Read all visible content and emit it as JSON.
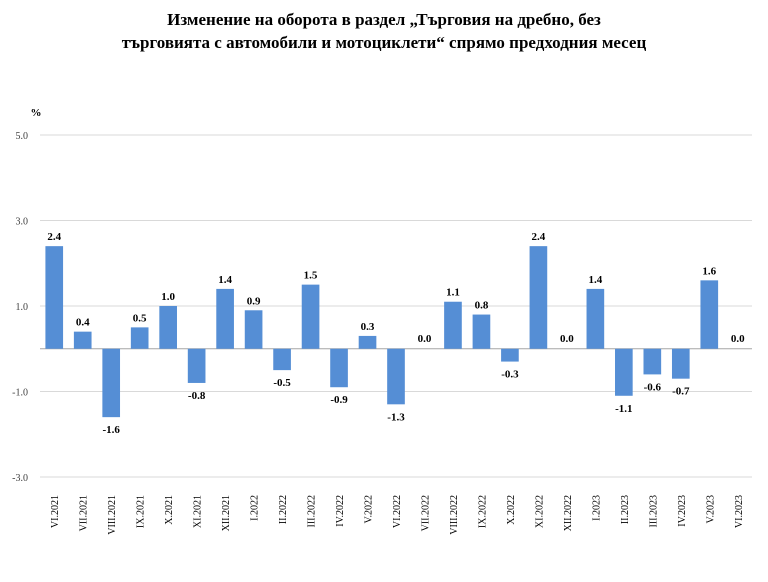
{
  "chart_data": {
    "type": "bar",
    "title_lines": [
      "Изменение на оборота в раздел „Търговия на дребно, без",
      "търговията с автомобили и мотоциклети“ спрямо предходния месец"
    ],
    "ylabel": "%",
    "ylim": [
      -3.0,
      5.0
    ],
    "yticks": [
      5.0,
      3.0,
      1.0,
      -1.0,
      -3.0
    ],
    "ytick_labels": [
      "5.0",
      "3.0",
      "1.0",
      "-1.0",
      "-3.0"
    ],
    "grid": true,
    "legend": "none",
    "bar_color": "#558ED5",
    "categories": [
      "VI.2021",
      "VII.2021",
      "VIII.2021",
      "IX.2021",
      "X.2021",
      "XI.2021",
      "XII.2021",
      "I.2022",
      "II.2022",
      "III.2022",
      "IV.2022",
      "V.2022",
      "VI.2022",
      "VII.2022",
      "VIII.2022",
      "IX.2022",
      "X.2022",
      "XI.2022",
      "XII.2022",
      "I.2023",
      "II.2023",
      "III.2023",
      "IV.2023",
      "V.2023",
      "VI.2023"
    ],
    "values": [
      2.4,
      0.4,
      -1.6,
      0.5,
      1.0,
      -0.8,
      1.4,
      0.9,
      -0.5,
      1.5,
      -0.9,
      0.3,
      -1.3,
      0.0,
      1.1,
      0.8,
      -0.3,
      2.4,
      0.0,
      1.4,
      -1.1,
      -0.6,
      -0.7,
      1.6,
      0.0
    ],
    "value_labels": [
      "2.4",
      "0.4",
      "-1.6",
      "0.5",
      "1.0",
      "-0.8",
      "1.4",
      "0.9",
      "-0.5",
      "1.5",
      "-0.9",
      "0.3",
      "-1.3",
      "0.0",
      "1.1",
      "0.8",
      "-0.3",
      "2.4",
      "0.0",
      "1.4",
      "-1.1",
      "-0.6",
      "-0.7",
      "1.6",
      "0.0"
    ]
  }
}
